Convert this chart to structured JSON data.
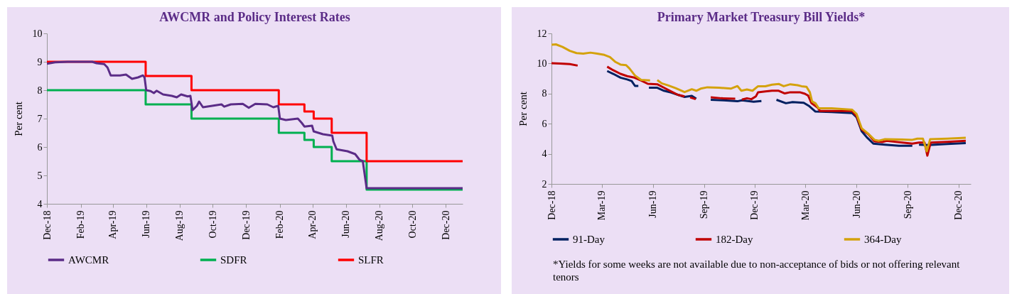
{
  "chart_data": [
    {
      "type": "line",
      "title": "AWCMR and Policy Interest Rates",
      "ylabel": "Per cent",
      "xlim": [
        "2018-12-01",
        "2021-01-01"
      ],
      "ylim": [
        4,
        10
      ],
      "yticks": [
        4,
        5,
        6,
        7,
        8,
        9,
        10
      ],
      "xticks": [
        {
          "value": "2018-12-01",
          "label": "Dec-18"
        },
        {
          "value": "2019-02-01",
          "label": "Feb-19"
        },
        {
          "value": "2019-04-01",
          "label": "Apr-19"
        },
        {
          "value": "2019-06-01",
          "label": "Jun-19"
        },
        {
          "value": "2019-08-01",
          "label": "Aug-19"
        },
        {
          "value": "2019-10-01",
          "label": "Oct-19"
        },
        {
          "value": "2019-12-01",
          "label": "Dec-19"
        },
        {
          "value": "2020-02-01",
          "label": "Feb-20"
        },
        {
          "value": "2020-04-01",
          "label": "Apr-20"
        },
        {
          "value": "2020-06-01",
          "label": "Jun-20"
        },
        {
          "value": "2020-08-01",
          "label": "Aug-20"
        },
        {
          "value": "2020-10-01",
          "label": "Oct-20"
        },
        {
          "value": "2020-12-01",
          "label": "Dec-20"
        }
      ],
      "grid": false,
      "legend": "bottom",
      "series": [
        {
          "name": "AWCMR",
          "color": "#5b2c87",
          "type": "line",
          "x": [
            "2018-12-01",
            "2018-12-16",
            "2019-01-08",
            "2019-02-22",
            "2019-03-02",
            "2019-03-16",
            "2019-03-22",
            "2019-03-28",
            "2019-04-14",
            "2019-04-25",
            "2019-05-06",
            "2019-05-17",
            "2019-05-26",
            "2019-05-29",
            "2019-06-01",
            "2019-06-09",
            "2019-06-15",
            "2019-06-20",
            "2019-07-02",
            "2019-07-18",
            "2019-07-27",
            "2019-08-04",
            "2019-08-16",
            "2019-08-21",
            "2019-08-25",
            "2019-09-02",
            "2019-09-06",
            "2019-09-13",
            "2019-09-30",
            "2019-10-17",
            "2019-10-22",
            "2019-11-03",
            "2019-11-25",
            "2019-12-06",
            "2019-12-18",
            "2020-01-09",
            "2020-01-20",
            "2020-01-29",
            "2020-02-01",
            "2020-02-12",
            "2020-03-05",
            "2020-03-12",
            "2020-03-17",
            "2020-03-31",
            "2020-04-03",
            "2020-04-20",
            "2020-05-07",
            "2020-05-09",
            "2020-05-15",
            "2020-06-04",
            "2020-06-18",
            "2020-06-26",
            "2020-07-02",
            "2020-07-09",
            "2020-10-01",
            "2021-01-01"
          ],
          "values": [
            8.93,
            8.98,
            9.0,
            9.0,
            8.95,
            8.92,
            8.8,
            8.52,
            8.52,
            8.55,
            8.4,
            8.45,
            8.52,
            8.45,
            8.0,
            7.97,
            7.9,
            7.98,
            7.85,
            7.8,
            7.75,
            7.85,
            7.78,
            7.8,
            7.3,
            7.45,
            7.6,
            7.4,
            7.45,
            7.5,
            7.42,
            7.5,
            7.52,
            7.38,
            7.52,
            7.5,
            7.4,
            7.45,
            7.0,
            6.95,
            7.0,
            6.85,
            6.72,
            6.75,
            6.55,
            6.45,
            6.4,
            6.2,
            5.92,
            5.85,
            5.75,
            5.55,
            5.5,
            4.55,
            4.55,
            4.55
          ]
        },
        {
          "name": "SDFR",
          "color": "#00b050",
          "type": "step",
          "x": [
            "2018-12-01",
            "2019-05-31",
            "2019-08-23",
            "2020-01-30",
            "2020-03-17",
            "2020-04-03",
            "2020-05-06",
            "2020-07-09",
            "2021-01-01"
          ],
          "values": [
            8.0,
            7.5,
            7.0,
            6.5,
            6.25,
            6.0,
            5.5,
            4.5,
            4.5
          ]
        },
        {
          "name": "SLFR",
          "color": "#ff0000",
          "type": "step",
          "x": [
            "2018-12-01",
            "2019-05-31",
            "2019-08-23",
            "2020-01-30",
            "2020-03-17",
            "2020-04-03",
            "2020-05-06",
            "2020-07-09",
            "2021-01-01"
          ],
          "values": [
            9.0,
            8.5,
            8.0,
            7.5,
            7.25,
            7.0,
            6.5,
            5.5,
            5.5
          ]
        }
      ]
    },
    {
      "type": "line",
      "title": "Primary Market Treasury Bill Yields*",
      "ylabel": "Per cent",
      "xlim": [
        "2018-12-01",
        "2020-12-23"
      ],
      "ylim": [
        2,
        12
      ],
      "yticks": [
        2,
        4,
        6,
        8,
        10,
        12
      ],
      "xticks": [
        {
          "value": "2018-12-01",
          "label": "Dec-18"
        },
        {
          "value": "2019-03-01",
          "label": "Mar-19"
        },
        {
          "value": "2019-06-01",
          "label": "Jun-19"
        },
        {
          "value": "2019-09-01",
          "label": "Sep-19"
        },
        {
          "value": "2019-12-01",
          "label": "Dec-19"
        },
        {
          "value": "2020-03-01",
          "label": "Mar-20"
        },
        {
          "value": "2020-06-01",
          "label": "Jun-20"
        },
        {
          "value": "2020-09-01",
          "label": "Sep-20"
        },
        {
          "value": "2020-12-01",
          "label": "Dec-20"
        }
      ],
      "grid": false,
      "legend": "bottom",
      "annotations": [
        "*Yields for some weeks are not available due to non-acceptance of bids or not offering relevant tenors"
      ],
      "series": [
        {
          "name": "91-Day",
          "color": "#002060",
          "x": [
            "2019-03-11",
            "2019-03-22",
            "2019-04-04",
            "2019-04-16",
            "2019-04-24",
            "2019-04-30",
            "2019-05-06",
            "2019-05-15",
            "2019-05-25",
            "2019-06-09",
            "2019-06-21",
            "2019-07-04",
            "2019-07-16",
            "2019-07-28",
            "2019-08-10",
            "2019-08-18",
            "2019-08-30",
            "2019-09-13",
            "2019-10-06",
            "2019-10-31",
            "2019-11-08",
            "2019-11-29",
            "2019-12-13",
            "2019-12-26",
            "2020-01-09",
            "2020-01-26",
            "2020-02-07",
            "2020-02-27",
            "2020-03-07",
            "2020-03-19",
            "2020-04-17",
            "2020-05-24",
            "2020-06-01",
            "2020-06-10",
            "2020-06-19",
            "2020-07-01",
            "2020-07-22",
            "2020-08-16",
            "2020-09-09",
            "2020-09-15",
            "2020-09-21",
            "2020-10-08",
            "2020-11-11",
            "2020-12-14"
          ],
          "values": [
            9.5,
            9.31,
            9.06,
            8.94,
            8.83,
            8.51,
            8.51,
            null,
            8.39,
            8.39,
            8.19,
            8.07,
            7.92,
            7.78,
            7.85,
            7.66,
            null,
            7.59,
            7.55,
            7.49,
            7.55,
            7.46,
            7.51,
            null,
            7.59,
            7.36,
            7.44,
            7.39,
            7.19,
            6.81,
            6.78,
            6.71,
            6.42,
            5.5,
            5.11,
            4.68,
            4.61,
            4.53,
            4.53,
            null,
            4.61,
            4.58,
            4.65,
            4.71
          ]
        },
        {
          "name": "182-Day",
          "color": "#c00000",
          "x": [
            "2018-12-01",
            "2018-12-17",
            "2019-01-03",
            "2019-01-17",
            "2019-02-09",
            "2019-03-11",
            "2019-03-22",
            "2019-04-04",
            "2019-04-16",
            "2019-04-29",
            "2019-05-11",
            "2019-05-23",
            "2019-06-09",
            "2019-06-21",
            "2019-07-04",
            "2019-07-16",
            "2019-07-28",
            "2019-08-02",
            "2019-08-07",
            "2019-08-17",
            "2019-08-30",
            "2019-09-13",
            "2019-10-02",
            "2019-10-27",
            "2019-11-02",
            "2019-11-08",
            "2019-11-17",
            "2019-11-25",
            "2019-12-03",
            "2019-12-07",
            "2019-12-20",
            "2020-01-01",
            "2020-01-13",
            "2020-01-24",
            "2020-02-03",
            "2020-02-20",
            "2020-02-29",
            "2020-03-06",
            "2020-03-12",
            "2020-03-23",
            "2020-03-27",
            "2020-05-24",
            "2020-06-01",
            "2020-06-10",
            "2020-06-22",
            "2020-07-03",
            "2020-07-17",
            "2020-07-25",
            "2020-09-09",
            "2020-09-21",
            "2020-10-01",
            "2020-10-06",
            "2020-10-12",
            "2020-11-11",
            "2020-12-14"
          ],
          "values": [
            10.02,
            9.99,
            9.96,
            9.86,
            null,
            9.79,
            9.55,
            9.31,
            9.16,
            9.06,
            8.87,
            8.65,
            8.62,
            8.39,
            8.14,
            7.92,
            7.81,
            null,
            7.75,
            7.63,
            null,
            7.75,
            7.69,
            7.66,
            null,
            7.6,
            7.69,
            7.63,
            7.81,
            8.09,
            8.14,
            8.19,
            8.19,
            8.01,
            8.09,
            8.09,
            7.99,
            7.87,
            7.36,
            7.07,
            6.85,
            6.85,
            6.49,
            5.62,
            5.3,
            4.83,
            4.78,
            4.86,
            4.68,
            4.75,
            4.75,
            3.88,
            4.75,
            4.8,
            4.86
          ]
        },
        {
          "name": "364-Day",
          "color": "#d4a20c",
          "x": [
            "2018-12-01",
            "2018-12-09",
            "2018-12-21",
            "2019-01-03",
            "2019-01-15",
            "2019-01-27",
            "2019-02-09",
            "2019-02-21",
            "2019-03-06",
            "2019-03-16",
            "2019-03-26",
            "2019-04-04",
            "2019-04-14",
            "2019-04-20",
            "2019-04-30",
            "2019-05-11",
            "2019-05-27",
            "2019-06-02",
            "2019-06-09",
            "2019-06-17",
            "2019-06-29",
            "2019-07-12",
            "2019-07-28",
            "2019-08-10",
            "2019-08-18",
            "2019-08-26",
            "2019-09-07",
            "2019-09-28",
            "2019-10-19",
            "2019-10-31",
            "2019-11-07",
            "2019-11-17",
            "2019-11-27",
            "2019-12-07",
            "2019-12-20",
            "2020-01-01",
            "2020-01-13",
            "2020-01-22",
            "2020-02-03",
            "2020-02-16",
            "2020-02-23",
            "2020-03-03",
            "2020-03-09",
            "2020-03-13",
            "2020-03-19",
            "2020-03-25",
            "2020-04-17",
            "2020-05-24",
            "2020-06-01",
            "2020-06-10",
            "2020-06-22",
            "2020-07-03",
            "2020-07-11",
            "2020-07-22",
            "2020-09-09",
            "2020-09-18",
            "2020-09-28",
            "2020-10-05",
            "2020-10-11",
            "2020-11-11",
            "2020-12-14"
          ],
          "values": [
            11.24,
            11.27,
            11.1,
            10.84,
            10.69,
            10.66,
            10.72,
            10.66,
            10.57,
            10.43,
            10.1,
            9.93,
            9.89,
            9.67,
            9.2,
            8.91,
            8.88,
            null,
            8.9,
            8.68,
            8.54,
            8.36,
            8.1,
            8.29,
            8.19,
            8.33,
            8.42,
            8.39,
            8.33,
            8.5,
            8.19,
            8.27,
            8.19,
            8.49,
            8.49,
            8.59,
            8.64,
            8.49,
            8.62,
            8.56,
            8.49,
            8.45,
            8.09,
            7.48,
            7.36,
            7.02,
            7.02,
            6.93,
            6.64,
            5.7,
            5.33,
            4.93,
            4.87,
            4.97,
            4.93,
            5.01,
            5.01,
            4.17,
            4.97,
            5.01,
            5.07
          ]
        }
      ]
    }
  ]
}
